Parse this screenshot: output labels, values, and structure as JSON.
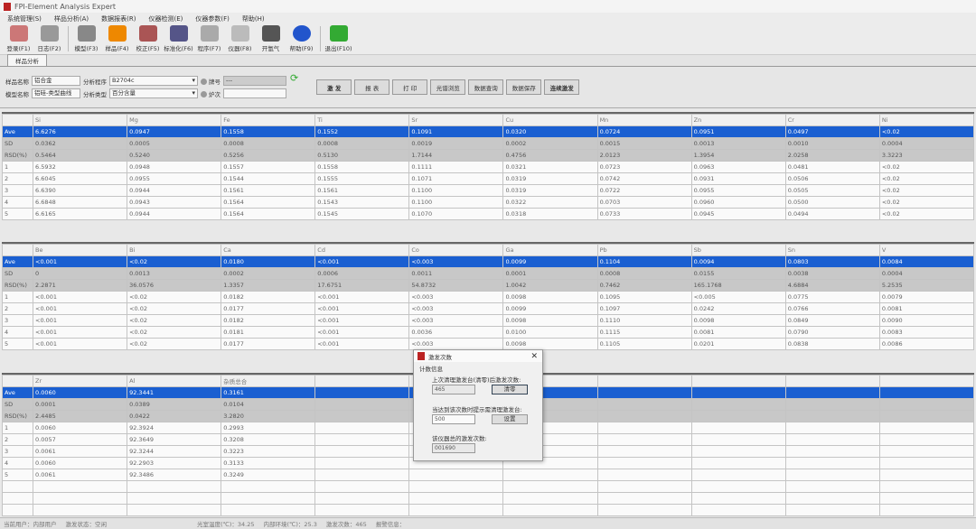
{
  "window": {
    "title": "FPI-Element Analysis Expert"
  },
  "menu": [
    "系统管理(S)",
    "样品分析(A)",
    "数据报表(R)",
    "仪器检测(E)",
    "仪器参数(F)",
    "帮助(H)"
  ],
  "toolbar": [
    {
      "label": "登录(F1)",
      "icon": "users-icon",
      "color": "#c77"
    },
    {
      "label": "日志(F2)",
      "icon": "log-clock-icon",
      "color": "#999"
    },
    {
      "label": "模型(F3)",
      "icon": "model-icon",
      "color": "#888"
    },
    {
      "label": "样品(F4)",
      "icon": "sample-cubes-icon",
      "color": "#e80"
    },
    {
      "label": "校正(F5)",
      "icon": "calibration-chart-icon",
      "color": "#a55"
    },
    {
      "label": "标准化(F6)",
      "icon": "standardize-grid-icon",
      "color": "#558"
    },
    {
      "label": "程序(F7)",
      "icon": "program-icon",
      "color": "#aaa"
    },
    {
      "label": "仪器(F8)",
      "icon": "instrument-icon",
      "color": "#bbb"
    },
    {
      "label": "开氩气",
      "icon": "argon-cylinder-icon",
      "color": "#555"
    },
    {
      "label": "帮助(F9)",
      "icon": "help-icon",
      "color": "#25c"
    },
    {
      "label": "退出(F10)",
      "icon": "exit-door-icon",
      "color": "#3a3"
    }
  ],
  "tab": "样品分析",
  "params": {
    "sample_name_label": "样品名称",
    "sample_name": "铝合金",
    "model_name_label": "模型名称",
    "model_name": "铝硅-类型曲线",
    "program_label": "分析程序",
    "program": "B2704c",
    "type_label": "分析类型",
    "type": "百分含量",
    "grade_label": "牌号",
    "grade": "---",
    "heat_label": "炉次",
    "heat": ""
  },
  "buttons": [
    "激 发",
    "报 表",
    "打 印",
    "光谱浏览",
    "数据查询",
    "数据保存",
    "连续激发"
  ],
  "row_headers": [
    "Ave",
    "SD",
    "RSD(%)",
    "1",
    "2",
    "3",
    "4",
    "5"
  ],
  "tables": [
    {
      "columns": [
        "Si",
        "Mg",
        "Fe",
        "Ti",
        "Sr",
        "Cu",
        "Mn",
        "Zn",
        "Cr",
        "Ni"
      ],
      "rows": [
        [
          "6.6276",
          "0.0947",
          "0.1558",
          "0.1552",
          "0.1091",
          "0.0320",
          "0.0724",
          "0.0951",
          "0.0497",
          "<0.02"
        ],
        [
          "0.0362",
          "0.0005",
          "0.0008",
          "0.0008",
          "0.0019",
          "0.0002",
          "0.0015",
          "0.0013",
          "0.0010",
          "0.0004"
        ],
        [
          "0.5464",
          "0.5240",
          "0.5256",
          "0.5130",
          "1.7144",
          "0.4756",
          "2.0123",
          "1.3954",
          "2.0258",
          "3.3223"
        ],
        [
          "6.5932",
          "0.0948",
          "0.1557",
          "0.1558",
          "0.1111",
          "0.0321",
          "0.0723",
          "0.0963",
          "0.0481",
          "<0.02"
        ],
        [
          "6.6045",
          "0.0955",
          "0.1544",
          "0.1555",
          "0.1071",
          "0.0319",
          "0.0742",
          "0.0931",
          "0.0506",
          "<0.02"
        ],
        [
          "6.6390",
          "0.0944",
          "0.1561",
          "0.1561",
          "0.1100",
          "0.0319",
          "0.0722",
          "0.0955",
          "0.0505",
          "<0.02"
        ],
        [
          "6.6848",
          "0.0943",
          "0.1564",
          "0.1543",
          "0.1100",
          "0.0322",
          "0.0703",
          "0.0960",
          "0.0500",
          "<0.02"
        ],
        [
          "6.6165",
          "0.0944",
          "0.1564",
          "0.1545",
          "0.1070",
          "0.0318",
          "0.0733",
          "0.0945",
          "0.0494",
          "<0.02"
        ]
      ]
    },
    {
      "columns": [
        "Be",
        "Bi",
        "Ca",
        "Cd",
        "Co",
        "Ga",
        "Pb",
        "Sb",
        "Sn",
        "V"
      ],
      "rows": [
        [
          "<0.001",
          "<0.02",
          "0.0180",
          "<0.001",
          "<0.003",
          "0.0099",
          "0.1104",
          "0.0094",
          "0.0803",
          "0.0084"
        ],
        [
          "0",
          "0.0013",
          "0.0002",
          "0.0006",
          "0.0011",
          "0.0001",
          "0.0008",
          "0.0155",
          "0.0038",
          "0.0004"
        ],
        [
          "2.2871",
          "36.0576",
          "1.3357",
          "17.6751",
          "54.8732",
          "1.0042",
          "0.7462",
          "165.1768",
          "4.6884",
          "5.2535"
        ],
        [
          "<0.001",
          "<0.02",
          "0.0182",
          "<0.001",
          "<0.003",
          "0.0098",
          "0.1095",
          "<0.005",
          "0.0775",
          "0.0079"
        ],
        [
          "<0.001",
          "<0.02",
          "0.0177",
          "<0.001",
          "<0.003",
          "0.0099",
          "0.1097",
          "0.0242",
          "0.0766",
          "0.0081"
        ],
        [
          "<0.001",
          "<0.02",
          "0.0182",
          "<0.001",
          "<0.003",
          "0.0098",
          "0.1110",
          "0.0098",
          "0.0849",
          "0.0090"
        ],
        [
          "<0.001",
          "<0.02",
          "0.0181",
          "<0.001",
          "0.0036",
          "0.0100",
          "0.1115",
          "0.0081",
          "0.0790",
          "0.0083"
        ],
        [
          "<0.001",
          "<0.02",
          "0.0177",
          "<0.001",
          "<0.003",
          "0.0098",
          "0.1105",
          "0.0201",
          "0.0838",
          "0.0086"
        ]
      ]
    },
    {
      "columns": [
        "Zr",
        "Al",
        "杂质总合",
        "",
        "",
        "",
        "",
        "",
        "",
        ""
      ],
      "rows": [
        [
          "0.0060",
          "92.3441",
          "0.3161"
        ],
        [
          "0.0001",
          "0.0389",
          "0.0104"
        ],
        [
          "2.4485",
          "0.0422",
          "3.2820"
        ],
        [
          "0.0060",
          "92.3924",
          "0.2993"
        ],
        [
          "0.0057",
          "92.3649",
          "0.3208"
        ],
        [
          "0.0061",
          "92.3244",
          "0.3223"
        ],
        [
          "0.0060",
          "92.2903",
          "0.3133"
        ],
        [
          "0.0061",
          "92.3486",
          "0.3249"
        ]
      ]
    }
  ],
  "dialog": {
    "title": "激发次数",
    "group": "计数信息",
    "last_clean_label": "上次清理激发台(清零)后激发次数:",
    "last_clean_value": "465",
    "clear_button": "清零",
    "threshold_label": "当达到该次数时提示需清理激发台:",
    "threshold_value": "500",
    "set_button": "设置",
    "total_label": "该仪器总的激发次数:",
    "total_value": "001690"
  },
  "status": [
    "当前用户：内部用户",
    "激发状态：空闲",
    "光室温度(℃)：34.25",
    "内部环境(℃)：25.3",
    "激发次数：465",
    "报警信息："
  ]
}
